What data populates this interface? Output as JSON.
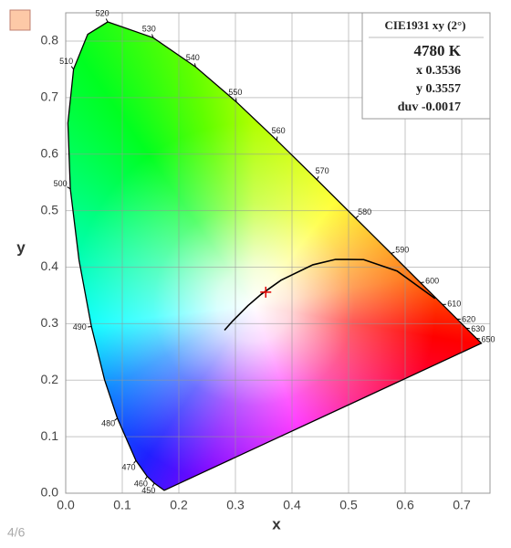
{
  "chart_data": {
    "type": "chromaticity",
    "xlabel": "x",
    "ylabel": "y",
    "xlim": [
      0,
      0.75
    ],
    "ylim": [
      0,
      0.85
    ],
    "xticks": [
      {
        "value": 0,
        "label": "0.0"
      },
      0.1,
      0.2,
      0.3,
      0.4,
      0.5,
      0.6,
      0.7
    ],
    "yticks": [
      {
        "value": 0,
        "label": "0.0"
      },
      0.1,
      0.2,
      0.3,
      0.4,
      0.5,
      0.6,
      0.7,
      0.8
    ],
    "grid": true,
    "locus": {
      "labels": [
        null,
        450,
        460,
        470,
        480,
        null,
        490,
        null,
        500,
        null,
        510,
        null,
        520,
        530,
        540,
        550,
        560,
        570,
        580,
        590,
        600,
        610,
        620,
        630,
        650,
        null
      ],
      "x": [
        0.1741,
        0.1566,
        0.144,
        0.1241,
        0.0913,
        0.0687,
        0.0454,
        0.0235,
        0.0082,
        0.0039,
        0.0139,
        0.0389,
        0.0743,
        0.1547,
        0.2296,
        0.3016,
        0.3731,
        0.4441,
        0.5125,
        0.5752,
        0.627,
        0.6658,
        0.6915,
        0.7079,
        0.726,
        0.7347
      ],
      "y": [
        0.005,
        0.0177,
        0.0297,
        0.0578,
        0.1327,
        0.2007,
        0.295,
        0.4127,
        0.5384,
        0.6548,
        0.7502,
        0.812,
        0.8338,
        0.8059,
        0.7543,
        0.6923,
        0.6245,
        0.5547,
        0.4866,
        0.4242,
        0.3725,
        0.334,
        0.3083,
        0.292,
        0.274,
        0.2653
      ]
    },
    "planckian": {
      "x": [
        0.2807,
        0.2952,
        0.3221,
        0.3451,
        0.3805,
        0.4369,
        0.477,
        0.5267,
        0.5857,
        0.6528
      ],
      "y": [
        0.2884,
        0.3048,
        0.3318,
        0.3516,
        0.3768,
        0.4041,
        0.4137,
        0.4133,
        0.3931,
        0.3444
      ]
    },
    "point": {
      "x": 0.3536,
      "y": 0.3557,
      "color": "#e00000"
    },
    "swatch_color": "#fdc9a7",
    "info": {
      "title": "CIE1931 xy (2°)",
      "cct": "4780 K",
      "x": "x 0.3536",
      "y": "y 0.3557",
      "duv": "duv -0.0017"
    }
  },
  "footer": {
    "page": "4/6"
  }
}
